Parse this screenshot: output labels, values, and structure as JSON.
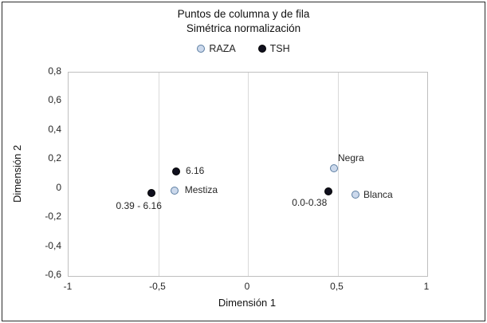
{
  "chart_data": {
    "type": "scatter",
    "title_lines": [
      "Puntos de columna y de fila",
      "Simétrica normalización"
    ],
    "xlabel": "Dimensión 1",
    "ylabel": "Dimensión 2",
    "xlim": [
      -1,
      1
    ],
    "ylim": [
      -0.6,
      0.8
    ],
    "grid": "vertical-only",
    "legend_position": "top-center",
    "x_ticks": {
      "values": [
        -1,
        -0.5,
        0,
        0.5,
        1
      ],
      "labels": [
        "-1",
        "-0,5",
        "0",
        "0,5",
        "1"
      ]
    },
    "y_ticks": {
      "values": [
        0.8,
        0.6,
        0.4,
        0.2,
        0,
        -0.2,
        -0.4,
        -0.6
      ],
      "labels": [
        "0,8",
        "0,6",
        "0,4",
        "0,2",
        "0",
        "-0,2",
        "-0,4",
        "-0,6"
      ]
    },
    "series": [
      {
        "name": "RAZA",
        "fill": "#ccd9ec",
        "stroke": "#5b7da1",
        "points": [
          {
            "x": -0.41,
            "y": -0.01,
            "label": "Mestiza",
            "label_dx": 13,
            "label_dy": -8
          },
          {
            "x": 0.48,
            "y": 0.14,
            "label": "Negra",
            "label_dx": 5,
            "label_dy": -20
          },
          {
            "x": 0.6,
            "y": -0.04,
            "label": "Blanca",
            "label_dx": 10,
            "label_dy": -7
          }
        ]
      },
      {
        "name": "TSH",
        "fill": "#10101e",
        "stroke": "#000000",
        "points": [
          {
            "x": -0.4,
            "y": 0.12,
            "label": "6.16",
            "label_dx": 12,
            "label_dy": -8
          },
          {
            "x": -0.54,
            "y": -0.03,
            "label": "0.39 - 6.16",
            "label_dx": -44,
            "label_dy": 9
          },
          {
            "x": 0.45,
            "y": -0.02,
            "label": "0.0-0.38",
            "label_dx": -46,
            "label_dy": 7
          }
        ]
      }
    ]
  }
}
